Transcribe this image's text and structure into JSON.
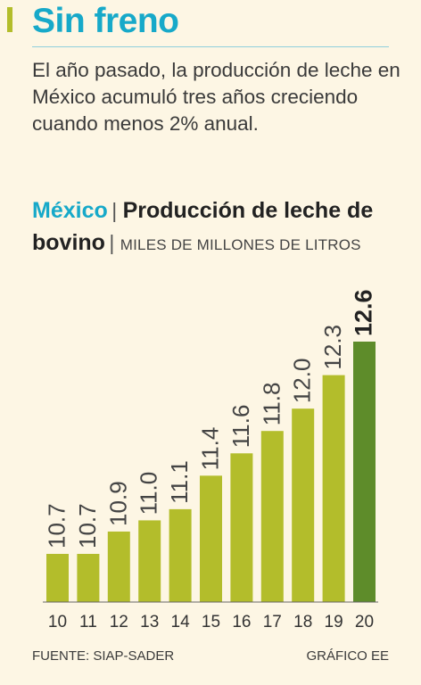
{
  "header": {
    "title": "Sin freno",
    "intro": "El año pasado, la producción de leche en México acumuló tres años creciendo cuando menos 2% anual."
  },
  "chart_heading": {
    "country": "México",
    "title": "Producción de leche de bovino",
    "unit": "MILES DE MILLONES DE LITROS"
  },
  "chart_data": {
    "type": "bar",
    "categories": [
      "10",
      "11",
      "12",
      "13",
      "14",
      "15",
      "16",
      "17",
      "18",
      "19",
      "20"
    ],
    "values": [
      10.7,
      10.7,
      10.9,
      11.0,
      11.1,
      11.4,
      11.6,
      11.8,
      12.0,
      12.3,
      12.6
    ],
    "value_labels": [
      "10.7",
      "10.7",
      "10.9",
      "11.0",
      "11.1",
      "11.4",
      "11.6",
      "11.8",
      "12.0",
      "12.3",
      "12.6"
    ],
    "highlight_index": 10,
    "colors": {
      "bar": "#b3bd2b",
      "highlight": "#5e8c2a"
    },
    "title": "Producción de leche de bovino",
    "xlabel": "",
    "ylabel": "MILES DE MILLONES DE LITROS"
  },
  "footer": {
    "source": "FUENTE: SIAP-SADER",
    "credit": "GRÁFICO EE"
  },
  "colors": {
    "background": "#fdf6e4",
    "accent": "#17a9c9",
    "bar": "#b3bd2b",
    "highlight": "#5e8c2a"
  }
}
